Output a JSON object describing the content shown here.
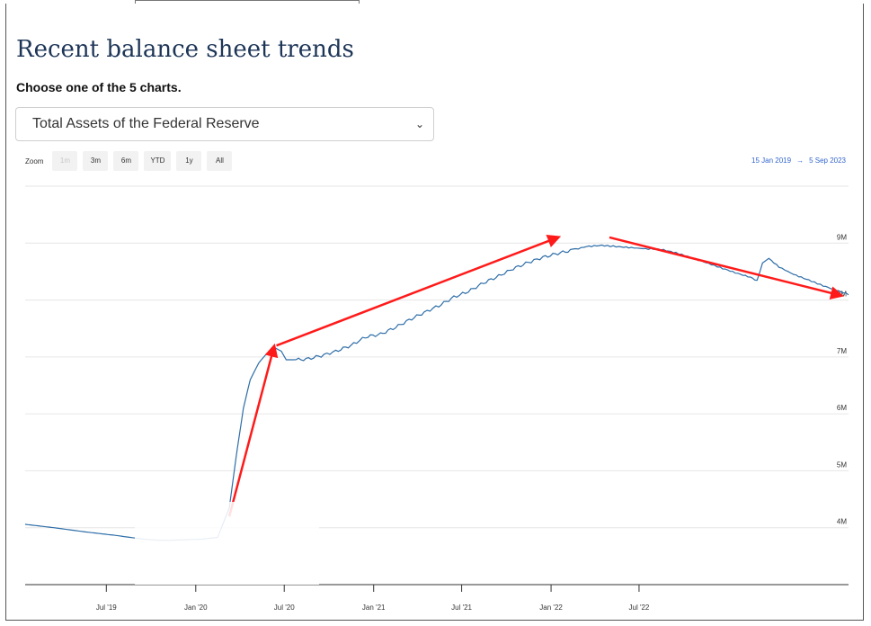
{
  "section": {
    "title": "Recent balance sheet trends",
    "subtitle": "Choose one of the 5 charts."
  },
  "chart_selector": {
    "selected": "Total Assets of the Federal Reserve"
  },
  "zoom": {
    "label": "Zoom",
    "buttons": [
      "1m",
      "3m",
      "6m",
      "YTD",
      "1y",
      "All"
    ]
  },
  "date_range": {
    "from": "15 Jan 2019",
    "arrow": "→",
    "to": "5 Sep 2023"
  },
  "colors": {
    "line": "#2f6ea8",
    "annotation": "#ff1a1a"
  },
  "chart_data": {
    "type": "line",
    "title": "",
    "xlabel": "",
    "ylabel": "",
    "ylim": [
      3.0,
      10.0
    ],
    "y_ticks": [
      "4M",
      "5M",
      "6M",
      "7M",
      "8M",
      "9M"
    ],
    "y_tick_values": [
      4,
      5,
      6,
      7,
      8,
      9
    ],
    "x_ticks": [
      "Jul '19",
      "Jan '20",
      "Jul '20",
      "Jan '21",
      "Jul '21",
      "Jan '22",
      "Jul '22"
    ],
    "x_tick_values": [
      "2019-07",
      "2020-01",
      "2020-07",
      "2021-01",
      "2021-07",
      "2022-01",
      "2022-07"
    ],
    "x_range": [
      "2019-01-15",
      "2023-09-05"
    ],
    "grid": true,
    "series": [
      {
        "values": [
          [
            "2019-01-15",
            4.06
          ],
          [
            "2019-03",
            4.0
          ],
          [
            "2019-05",
            3.93
          ],
          [
            "2019-07",
            3.87
          ],
          [
            "2019-09",
            3.8
          ],
          [
            "2019-10",
            3.78
          ],
          [
            "2019-11",
            3.78
          ],
          [
            "2019-12",
            3.79
          ],
          [
            "2020-01",
            3.8
          ],
          [
            "2020-02",
            3.83
          ],
          [
            "2020-03-10",
            4.35
          ],
          [
            "2020-03-25",
            5.3
          ],
          [
            "2020-04-08",
            6.1
          ],
          [
            "2020-04-22",
            6.6
          ],
          [
            "2020-05-10",
            6.9
          ],
          [
            "2020-05-25",
            7.05
          ],
          [
            "2020-06-10",
            7.17
          ],
          [
            "2020-06-25",
            7.1
          ],
          [
            "2020-07-05",
            6.95
          ],
          [
            "2020-07-20",
            6.95
          ],
          [
            "2020-08",
            6.96
          ],
          [
            "2020-09",
            7.02
          ],
          [
            "2020-10",
            7.1
          ],
          [
            "2020-11",
            7.2
          ],
          [
            "2020-12",
            7.35
          ],
          [
            "2021-01",
            7.4
          ],
          [
            "2021-02",
            7.52
          ],
          [
            "2021-03",
            7.65
          ],
          [
            "2021-04",
            7.78
          ],
          [
            "2021-05",
            7.9
          ],
          [
            "2021-06",
            8.05
          ],
          [
            "2021-07",
            8.15
          ],
          [
            "2021-08",
            8.3
          ],
          [
            "2021-09",
            8.42
          ],
          [
            "2021-10",
            8.55
          ],
          [
            "2021-11",
            8.66
          ],
          [
            "2021-12",
            8.75
          ],
          [
            "2022-01",
            8.82
          ],
          [
            "2022-02",
            8.88
          ],
          [
            "2022-03",
            8.94
          ],
          [
            "2022-04",
            8.96
          ],
          [
            "2022-05",
            8.94
          ],
          [
            "2022-06",
            8.92
          ],
          [
            "2022-07",
            8.9
          ],
          [
            "2022-08",
            8.89
          ],
          [
            "2022-09",
            8.83
          ],
          [
            "2022-10",
            8.75
          ],
          [
            "2022-11",
            8.66
          ],
          [
            "2022-12",
            8.57
          ],
          [
            "2023-01",
            8.48
          ],
          [
            "2023-02",
            8.4
          ],
          [
            "2023-03-01",
            8.34
          ],
          [
            "2023-03-12",
            8.65
          ],
          [
            "2023-03-25",
            8.73
          ],
          [
            "2023-04",
            8.58
          ],
          [
            "2023-05",
            8.45
          ],
          [
            "2023-06",
            8.35
          ],
          [
            "2023-07",
            8.25
          ],
          [
            "2023-08",
            8.16
          ],
          [
            "2023-09-05",
            8.1
          ]
        ]
      }
    ],
    "annotations": [
      {
        "type": "arrow",
        "from": [
          "2020-03-10",
          4.2
        ],
        "to": [
          "2020-06-10",
          7.18
        ]
      },
      {
        "type": "arrow",
        "from": [
          "2020-06-15",
          7.2
        ],
        "to": [
          "2022-01-15",
          9.1
        ]
      },
      {
        "type": "arrow",
        "from": [
          "2022-05-01",
          9.1
        ],
        "to": [
          "2023-08-20",
          8.08
        ]
      }
    ]
  }
}
